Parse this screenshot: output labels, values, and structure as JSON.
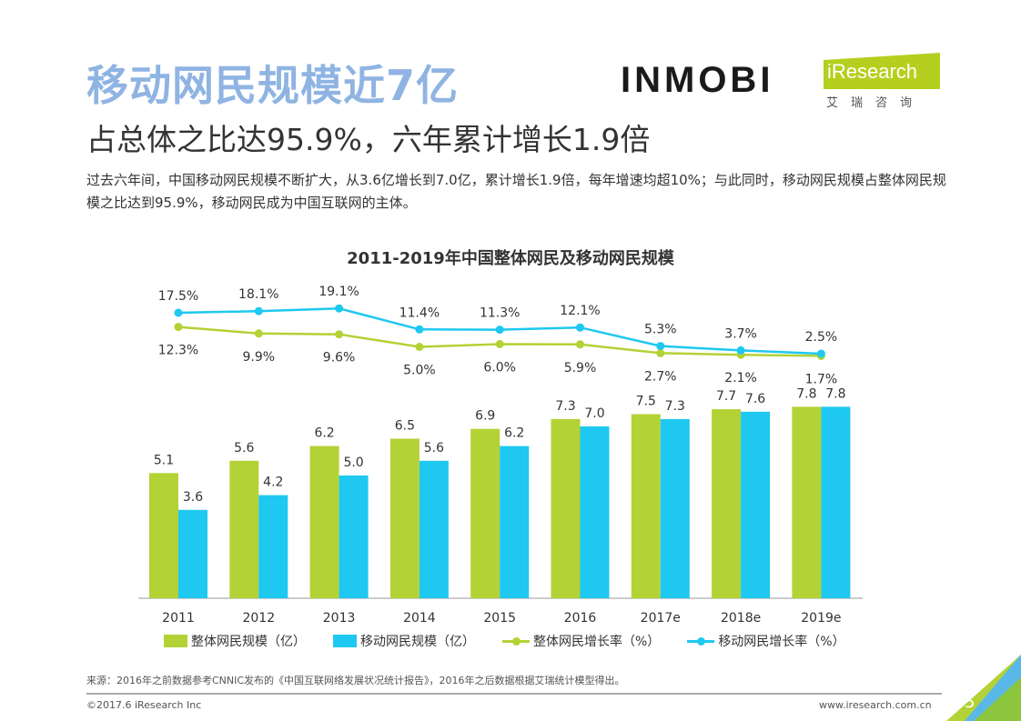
{
  "header": {
    "title": "移动网民规模近7亿",
    "subtitle": "占总体之比达95.9%，六年累计增长1.9倍",
    "description": "过去六年间，中国移动网民规模不断扩大，从3.6亿增长到7.0亿，累计增长1.9倍，每年增速均超10%；与此同时，移动网民规模占整体网民规模之比达到95.9%，移动网民成为中国互联网的主体。"
  },
  "logos": {
    "inmobi": "INMOBI",
    "iresearch": "iResearch",
    "iresearch_cn": "艾瑞咨询"
  },
  "chart_data": {
    "type": "bar",
    "title": "2011-2019年中国整体网民及移动网民规模",
    "categories": [
      "2011",
      "2012",
      "2013",
      "2014",
      "2015",
      "2016",
      "2017e",
      "2018e",
      "2019e"
    ],
    "series": [
      {
        "name": "整体网民规模（亿）",
        "kind": "bar",
        "color": "#b3d235",
        "values": [
          5.1,
          5.6,
          6.2,
          6.5,
          6.9,
          7.3,
          7.5,
          7.7,
          7.8
        ]
      },
      {
        "name": "移动网民规模（亿）",
        "kind": "bar",
        "color": "#1ec8f0",
        "values": [
          3.6,
          4.2,
          5.0,
          5.6,
          6.2,
          7.0,
          7.3,
          7.6,
          7.8
        ]
      },
      {
        "name": "整体网民增长率（%）",
        "kind": "line",
        "color": "#b3d235",
        "values": [
          12.3,
          9.9,
          9.6,
          5.0,
          6.0,
          5.9,
          2.7,
          2.1,
          1.7
        ]
      },
      {
        "name": "移动网民增长率（%）",
        "kind": "line",
        "color": "#1ec8f0",
        "values": [
          17.5,
          18.1,
          19.1,
          11.4,
          11.3,
          12.1,
          5.3,
          3.7,
          2.5
        ]
      }
    ],
    "legend": "bottom",
    "grid": false
  },
  "footer": {
    "source": "来源：2016年之前数据参考CNNIC发布的《中国互联网络发展状况统计报告》，2016年之后数据根据艾瑞统计模型得出。",
    "copyright": "©2017.6 iResearch Inc",
    "url": "www.iresearch.com.cn",
    "page": "5"
  }
}
